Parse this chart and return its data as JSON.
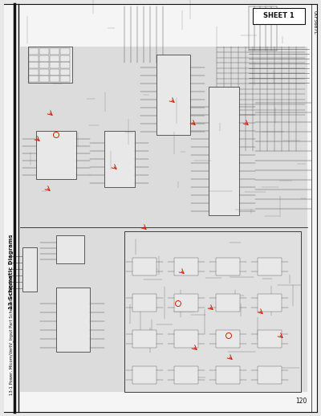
{
  "bg_color": "#e8e8e8",
  "page_bg": "#f5f5f5",
  "schematic_bg": "#e0e0e0",
  "border_color": "#111111",
  "schematic_color": "#555555",
  "dark_color": "#222222",
  "red_color": "#cc2200",
  "title_main": "13 Schematic Diagrams",
  "title_sub": "13-1 Power, Micom/VertV_Input Part Schematic Diagram",
  "sheet_label": "SHEET 1",
  "page_num": "120",
  "corner_text": "CKF5607L",
  "title_fontsize": 5.0,
  "subtitle_fontsize": 3.8,
  "label_fontsize": 5.5,
  "small_fontsize": 3.0,
  "sheet_fontsize": 6.0
}
